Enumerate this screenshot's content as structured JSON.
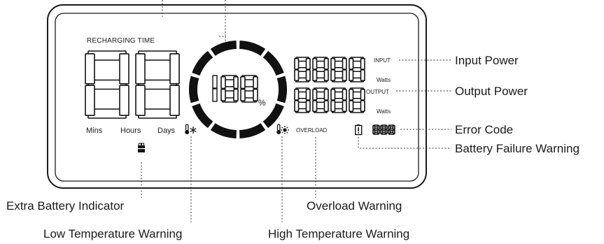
{
  "display": {
    "recharging_time_label": "RECHARGING TIME",
    "big_digits": "88",
    "time_units": [
      "Mins",
      "Hours",
      "Days"
    ],
    "percent_digits": "188",
    "percent_unit": "%",
    "input_label": "INPUT",
    "output_label": "OUTPUT",
    "input_digits": "8888",
    "output_digits": "8888",
    "input_unit": "Watts",
    "output_unit": "Watts",
    "overload_label": "OVERLOAD",
    "error_digits": "888",
    "ring_segments": 10
  },
  "callouts": {
    "input_power": "Input Power",
    "output_power": "Output Power",
    "error_code": "Error Code",
    "battery_failure": "Battery Failure Warning",
    "extra_battery": "Extra Battery Indicator",
    "overload": "Overload Warning",
    "low_temp": "Low Temperature Warning",
    "high_temp": "High Temperature Warning"
  },
  "icons": {
    "low_temp": "thermometer-snowflake-icon",
    "high_temp": "thermometer-sun-icon",
    "battery_failure": "battery-warning-icon",
    "extra_battery": "extra-battery-icon"
  },
  "colors": {
    "ink": "#111111",
    "frame": "#1a1a1a"
  }
}
